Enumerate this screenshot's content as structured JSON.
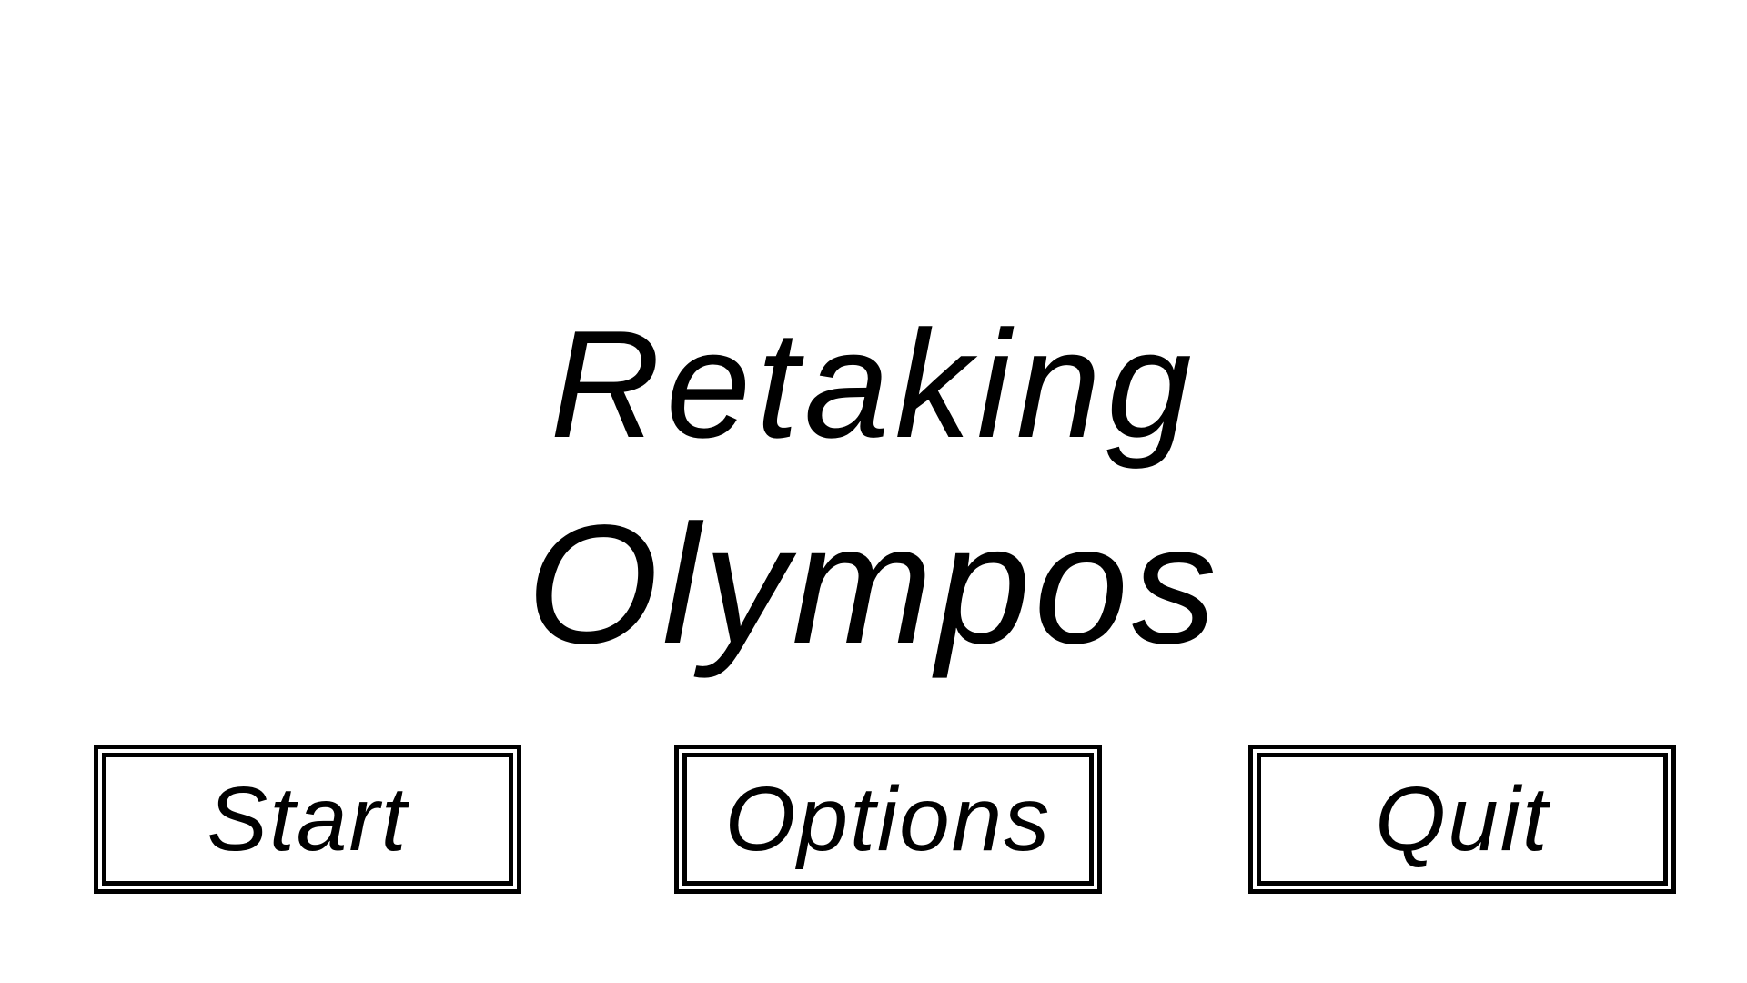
{
  "title": {
    "line1": "Retaking",
    "line2": "Olympos"
  },
  "menu": {
    "start_label": "Start",
    "options_label": "Options",
    "quit_label": "Quit"
  }
}
